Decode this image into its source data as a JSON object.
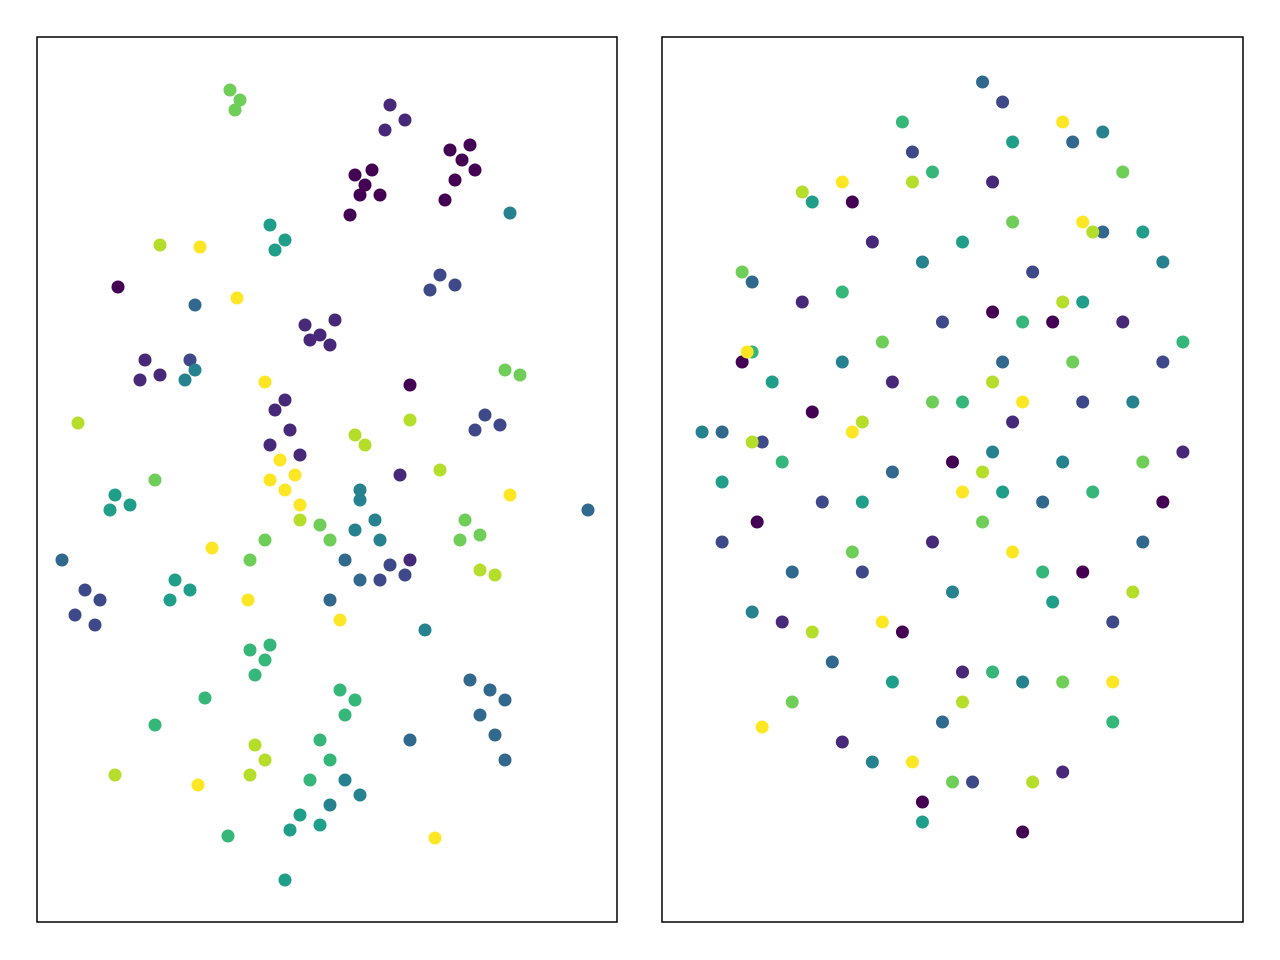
{
  "chart_data": [
    {
      "type": "scatter",
      "xlim": [
        0,
        580
      ],
      "ylim": [
        0,
        885
      ],
      "series": [
        {
          "color": "#440154",
          "x": [
            318,
            328,
            335,
            323,
            413,
            425,
            438,
            433,
            418,
            408,
            343,
            81,
            373,
            313
          ],
          "values": [
            747,
            737,
            752,
            727,
            772,
            762,
            752,
            777,
            742,
            722,
            727,
            635,
            537,
            707
          ]
        },
        {
          "color": "#482878",
          "x": [
            268,
            283,
            298,
            273,
            293,
            238,
            248,
            253,
            233,
            263,
            108,
            123,
            103,
            353,
            348,
            368,
            363,
            373
          ],
          "values": [
            597,
            587,
            602,
            582,
            577,
            512,
            522,
            492,
            477,
            467,
            562,
            547,
            542,
            817,
            792,
            802,
            447,
            362
          ]
        },
        {
          "color": "#3e4989",
          "x": [
            403,
            418,
            393,
            448,
            463,
            438,
            353,
            368,
            343,
            48,
            63,
            38,
            58,
            153
          ],
          "values": [
            647,
            637,
            632,
            507,
            497,
            492,
            357,
            347,
            342,
            332,
            322,
            307,
            297,
            562
          ]
        },
        {
          "color": "#31688e",
          "x": [
            433,
            453,
            468,
            443,
            458,
            468,
            308,
            323,
            293,
            373,
            551,
            25,
            158
          ],
          "values": [
            242,
            232,
            222,
            207,
            187,
            162,
            362,
            342,
            322,
            182,
            412,
            362,
            617
          ]
        },
        {
          "color": "#26828e",
          "x": [
            323,
            338,
            318,
            308,
            323,
            293,
            158,
            148,
            473,
            323,
            343,
            388
          ],
          "values": [
            422,
            402,
            392,
            142,
            127,
            117,
            552,
            542,
            709,
            432,
            382,
            292
          ]
        },
        {
          "color": "#1f9e89",
          "x": [
            233,
            248,
            238,
            138,
            153,
            133,
            78,
            93,
            73,
            263,
            283,
            253,
            248
          ],
          "values": [
            697,
            682,
            672,
            342,
            332,
            322,
            427,
            417,
            412,
            107,
            97,
            92,
            42
          ]
        },
        {
          "color": "#35b779",
          "x": [
            213,
            228,
            218,
            233,
            303,
            318,
            308,
            283,
            293,
            273,
            191,
            118,
            168
          ],
          "values": [
            272,
            262,
            247,
            277,
            232,
            222,
            207,
            182,
            162,
            142,
            86,
            197,
            224
          ]
        },
        {
          "color": "#6ece58",
          "x": [
            193,
            203,
            198,
            428,
            443,
            423,
            468,
            483,
            283,
            293,
            213,
            228,
            118
          ],
          "values": [
            832,
            822,
            812,
            402,
            387,
            382,
            552,
            547,
            397,
            382,
            362,
            382,
            442
          ]
        },
        {
          "color": "#b5de2b",
          "x": [
            218,
            228,
            213,
            318,
            328,
            443,
            458,
            373,
            123,
            78,
            41,
            263,
            403
          ],
          "values": [
            177,
            162,
            147,
            487,
            477,
            352,
            347,
            502,
            677,
            147,
            499,
            402,
            452
          ]
        },
        {
          "color": "#fde725",
          "x": [
            243,
            258,
            248,
            263,
            233,
            163,
            200,
            398,
            161,
            473,
            228,
            211,
            303,
            175
          ],
          "values": [
            462,
            447,
            432,
            417,
            442,
            675,
            624,
            84,
            137,
            427,
            540,
            322,
            302,
            374
          ]
        }
      ]
    },
    {
      "type": "scatter",
      "xlim": [
        0,
        580
      ],
      "ylim": [
        0,
        885
      ],
      "series": [
        {
          "color": "#440154",
          "x": [
            190,
            330,
            95,
            260,
            420,
            500,
            150,
            390,
            240,
            360,
            80,
            290
          ],
          "values": [
            720,
            610,
            400,
            120,
            350,
            420,
            510,
            600,
            290,
            90,
            560,
            460
          ]
        },
        {
          "color": "#482878",
          "x": [
            210,
            120,
            350,
            460,
            300,
            180,
            400,
            520,
            140,
            270,
            330,
            230
          ],
          "values": [
            680,
            300,
            500,
            600,
            250,
            180,
            150,
            470,
            620,
            380,
            740,
            540
          ]
        },
        {
          "color": "#3e4989",
          "x": [
            250,
            100,
            370,
            450,
            200,
            310,
            420,
            160,
            280,
            500,
            340,
            60
          ],
          "values": [
            770,
            480,
            650,
            300,
            350,
            140,
            520,
            420,
            600,
            560,
            820,
            380
          ]
        },
        {
          "color": "#31688e",
          "x": [
            320,
            90,
            230,
            440,
            380,
            170,
            280,
            480,
            130,
            340,
            410,
            60
          ],
          "values": [
            840,
            640,
            450,
            690,
            420,
            260,
            200,
            380,
            350,
            560,
            780,
            490
          ]
        },
        {
          "color": "#26828e",
          "x": [
            440,
            40,
            330,
            260,
            180,
            500,
            360,
            210,
            90,
            400,
            290,
            470
          ],
          "values": [
            790,
            490,
            470,
            660,
            560,
            660,
            240,
            160,
            310,
            460,
            330,
            520
          ]
        },
        {
          "color": "#1f9e89",
          "x": [
            300,
            150,
            420,
            340,
            110,
            230,
            390,
            480,
            260,
            350,
            200,
            60
          ],
          "values": [
            680,
            720,
            620,
            430,
            540,
            240,
            320,
            690,
            100,
            780,
            420,
            440
          ]
        },
        {
          "color": "#35b779",
          "x": [
            240,
            380,
            120,
            300,
            450,
            180,
            330,
            430,
            90,
            270,
            360,
            520
          ],
          "values": [
            800,
            350,
            460,
            520,
            200,
            630,
            250,
            430,
            570,
            750,
            600,
            580
          ]
        },
        {
          "color": "#6ece58",
          "x": [
            350,
            270,
            460,
            190,
            400,
            130,
            320,
            80,
            220,
            480,
            290,
            410
          ],
          "values": [
            700,
            520,
            750,
            370,
            240,
            220,
            400,
            650,
            580,
            460,
            140,
            560
          ]
        },
        {
          "color": "#b5de2b",
          "x": [
            320,
            150,
            400,
            250,
            470,
            90,
            300,
            200,
            370,
            430,
            140,
            330
          ],
          "values": [
            450,
            290,
            620,
            740,
            330,
            480,
            220,
            500,
            140,
            690,
            730,
            540
          ]
        },
        {
          "color": "#fde725",
          "x": [
            85,
            400,
            190,
            300,
            250,
            100,
            360,
            450,
            220,
            180,
            420,
            350
          ],
          "values": [
            570,
            800,
            490,
            430,
            160,
            195,
            520,
            240,
            300,
            740,
            700,
            370
          ]
        }
      ]
    }
  ]
}
